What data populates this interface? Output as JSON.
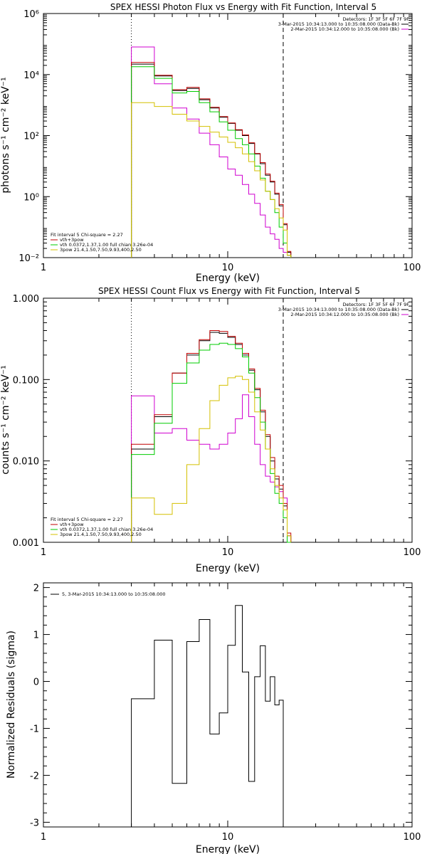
{
  "chart_data": [
    {
      "type": "line",
      "title": "SPEX HESSI Photon Flux vs Energy with Fit Function, Interval 5",
      "xlabel": "Energy (keV)",
      "ylabel": "photons s⁻¹ cm⁻² keV⁻¹",
      "x_scale": "log",
      "y_scale": "log",
      "xlim": [
        1,
        100
      ],
      "ylim": [
        0.01,
        1000000
      ],
      "x_ticks": [
        {
          "value": 1,
          "label": "1"
        },
        {
          "value": 10,
          "label": "10"
        },
        {
          "value": 100,
          "label": "100"
        }
      ],
      "y_ticks": [
        {
          "value": 0.01,
          "label": "10⁻²"
        },
        {
          "value": 1,
          "label": "10⁰"
        },
        {
          "value": 100,
          "label": "10²"
        },
        {
          "value": 10000,
          "label": "10⁴"
        },
        {
          "value": 1000000,
          "label": "10⁶"
        }
      ],
      "vlines": [
        {
          "x": 3,
          "style": "dotted"
        },
        {
          "x": 20,
          "style": "dashed"
        }
      ],
      "bin_edges": [
        3,
        4,
        5,
        6,
        7,
        8,
        9,
        10,
        11,
        12,
        13,
        14,
        15,
        16,
        17,
        18,
        19,
        20,
        21,
        22
      ],
      "series": [
        {
          "name": "3-Mar-2015 10:34:13.000 to 10:35:08.000 (Data-Bk)",
          "color": "#000000",
          "values": [
            22000,
            9000,
            3000,
            3500,
            1500,
            800,
            400,
            250,
            150,
            100,
            55,
            25,
            12,
            5,
            3,
            1.2,
            0.5,
            0.12,
            0.015
          ]
        },
        {
          "name": "2-Mar-2015 10:34:12.000 to 10:35:08.000 (Bk)",
          "color": "#d000d0",
          "values": [
            80000,
            5000,
            800,
            350,
            120,
            50,
            20,
            8,
            5,
            2.5,
            1.2,
            0.6,
            0.25,
            0.1,
            0.06,
            0.04,
            0.02,
            0.015,
            0.012
          ]
        },
        {
          "name": "vth+3pow",
          "color": "#c00000",
          "values": [
            25000,
            9500,
            3200,
            3800,
            1600,
            850,
            420,
            260,
            155,
            105,
            58,
            26,
            13,
            5.5,
            3.2,
            1.3,
            0.55,
            0.13,
            0.016
          ]
        },
        {
          "name": "vth 0.0372,1.37,1.00 full chian 3.26e-04",
          "color": "#00cc00",
          "values": [
            18000,
            7500,
            2500,
            2800,
            1200,
            600,
            280,
            150,
            80,
            50,
            25,
            10,
            4,
            1.5,
            0.8,
            0.3,
            0.1,
            0.03,
            0.012
          ]
        },
        {
          "name": "3pow 21.4,1.50,7.50,9.93,400,2.50",
          "color": "#d4c000",
          "values": [
            1200,
            900,
            500,
            300,
            200,
            130,
            90,
            60,
            40,
            25,
            14,
            7,
            3.5,
            1.5,
            0.8,
            0.4,
            0.2,
            0.08,
            0.012
          ]
        }
      ],
      "legend": {
        "placement": "bottom-left",
        "heading": "Fit interval 5   Chi-square = 2.27",
        "entries": [
          "vth+3pow",
          "vth 0.0372,1.37,1.00 full chian 3.26e-04",
          "3pow 21.4,1.50,7.50,9.93,400,2.50"
        ]
      },
      "detectors_label": "Detectors: 1F 3F 5F 6F 7F 9F",
      "top_legend_placement": "top-right",
      "top_legend_entries": [
        "3-Mar-2015 10:34:13.000 to 10:35:08.000 (Data-Bk)",
        "2-Mar-2015 10:34:12.000 to 10:35:08.000 (Bk)"
      ]
    },
    {
      "type": "line",
      "title": "SPEX HESSI Count Flux vs Energy with Fit Function, Interval 5",
      "xlabel": "Energy (keV)",
      "ylabel": "counts s⁻¹ cm⁻² keV⁻¹",
      "x_scale": "log",
      "y_scale": "log",
      "xlim": [
        1,
        100
      ],
      "ylim": [
        0.001,
        1
      ],
      "x_ticks": [
        {
          "value": 1,
          "label": "1"
        },
        {
          "value": 10,
          "label": "10"
        },
        {
          "value": 100,
          "label": "100"
        }
      ],
      "y_ticks": [
        {
          "value": 0.001,
          "label": "0.001"
        },
        {
          "value": 0.01,
          "label": "0.010"
        },
        {
          "value": 0.1,
          "label": "0.100"
        },
        {
          "value": 1,
          "label": "1.000"
        }
      ],
      "vlines": [
        {
          "x": 3,
          "style": "dotted"
        },
        {
          "x": 20,
          "style": "dashed"
        }
      ],
      "bin_edges": [
        3,
        4,
        5,
        6,
        7,
        8,
        9,
        10,
        11,
        12,
        13,
        14,
        15,
        16,
        17,
        18,
        19,
        20,
        21,
        22
      ],
      "series": [
        {
          "name": "3-Mar-2015 10:34:13.000 to 10:35:08.000 (Data-Bk)",
          "color": "#000000",
          "values": [
            0.014,
            0.035,
            0.12,
            0.2,
            0.3,
            0.38,
            0.37,
            0.33,
            0.27,
            0.2,
            0.13,
            0.075,
            0.04,
            0.02,
            0.01,
            0.006,
            0.0045,
            0.0028,
            0.0012
          ]
        },
        {
          "name": "2-Mar-2015 10:34:12.000 to 10:35:08.000 (Bk)",
          "color": "#d000d0",
          "values": [
            0.063,
            0.022,
            0.025,
            0.018,
            0.016,
            0.014,
            0.016,
            0.022,
            0.033,
            0.065,
            0.035,
            0.016,
            0.009,
            0.0065,
            0.0055,
            0.0048,
            0.0042,
            0.0035,
            0.0012
          ]
        },
        {
          "name": "vth+3pow",
          "color": "#c00000",
          "values": [
            0.016,
            0.037,
            0.12,
            0.21,
            0.31,
            0.4,
            0.39,
            0.34,
            0.28,
            0.21,
            0.135,
            0.078,
            0.042,
            0.021,
            0.011,
            0.0065,
            0.005,
            0.003,
            0.0013
          ]
        },
        {
          "name": "vth 0.0372,1.37,1.00 full chian 3.26e-04",
          "color": "#00cc00",
          "values": [
            0.012,
            0.029,
            0.09,
            0.16,
            0.23,
            0.27,
            0.28,
            0.27,
            0.24,
            0.19,
            0.12,
            0.06,
            0.03,
            0.014,
            0.007,
            0.004,
            0.003,
            0.002,
            0.001
          ]
        },
        {
          "name": "3pow 21.4,1.50,7.50,9.93,400,2.50",
          "color": "#d4c000",
          "values": [
            0.0035,
            0.0022,
            0.003,
            0.009,
            0.025,
            0.055,
            0.085,
            0.105,
            0.11,
            0.1,
            0.07,
            0.04,
            0.024,
            0.014,
            0.008,
            0.005,
            0.0035,
            0.0025,
            0.0012
          ]
        }
      ],
      "legend": {
        "placement": "bottom-left",
        "heading": "Fit interval 5   Chi-square = 2.27",
        "entries": [
          "vth+3pow",
          "vth 0.0372,1.37,1.00 full chian 3.26e-04",
          "3pow 21.4,1.50,7.50,9.93,400,2.50"
        ]
      },
      "detectors_label": "Detectors: 1F 3F 5F 6F 7F 9F",
      "top_legend_placement": "top-right",
      "top_legend_entries": [
        "3-Mar-2015 10:34:13.000 to 10:35:08.000 (Data-Bk)",
        "2-Mar-2015 10:34:12.000 to 10:35:08.000 (Bk)"
      ]
    },
    {
      "type": "line",
      "title": "",
      "xlabel": "Energy (keV)",
      "ylabel": "Normalized Residuals (sigma)",
      "x_scale": "log",
      "y_scale": "linear",
      "xlim": [
        1,
        100
      ],
      "ylim": [
        -3.1,
        2.1
      ],
      "x_ticks": [
        {
          "value": 1,
          "label": "1"
        },
        {
          "value": 10,
          "label": "10"
        },
        {
          "value": 100,
          "label": "100"
        }
      ],
      "y_ticks": [
        {
          "value": -3,
          "label": "-3"
        },
        {
          "value": -2,
          "label": "-2"
        },
        {
          "value": -1,
          "label": "-1"
        },
        {
          "value": 0,
          "label": "0"
        },
        {
          "value": 1,
          "label": "1"
        },
        {
          "value": 2,
          "label": "2"
        }
      ],
      "bin_edges": [
        3,
        4,
        5,
        6,
        7,
        8,
        9,
        10,
        11,
        12,
        13,
        14,
        15,
        16,
        17,
        18,
        19,
        20
      ],
      "series": [
        {
          "name": "5, 3-Mar-2015 10:34:13.000 to 10:35:08.000",
          "color": "#000000",
          "values": [
            -0.37,
            0.88,
            -2.17,
            0.85,
            1.32,
            -1.12,
            -0.67,
            0.77,
            1.62,
            0.2,
            -2.13,
            0.1,
            0.76,
            -0.42,
            0.1,
            -0.5,
            -0.4
          ]
        }
      ],
      "legend": {
        "placement": "top-left",
        "entries": [
          "5, 3-Mar-2015 10:34:13.000 to 10:35:08.000"
        ]
      }
    }
  ]
}
